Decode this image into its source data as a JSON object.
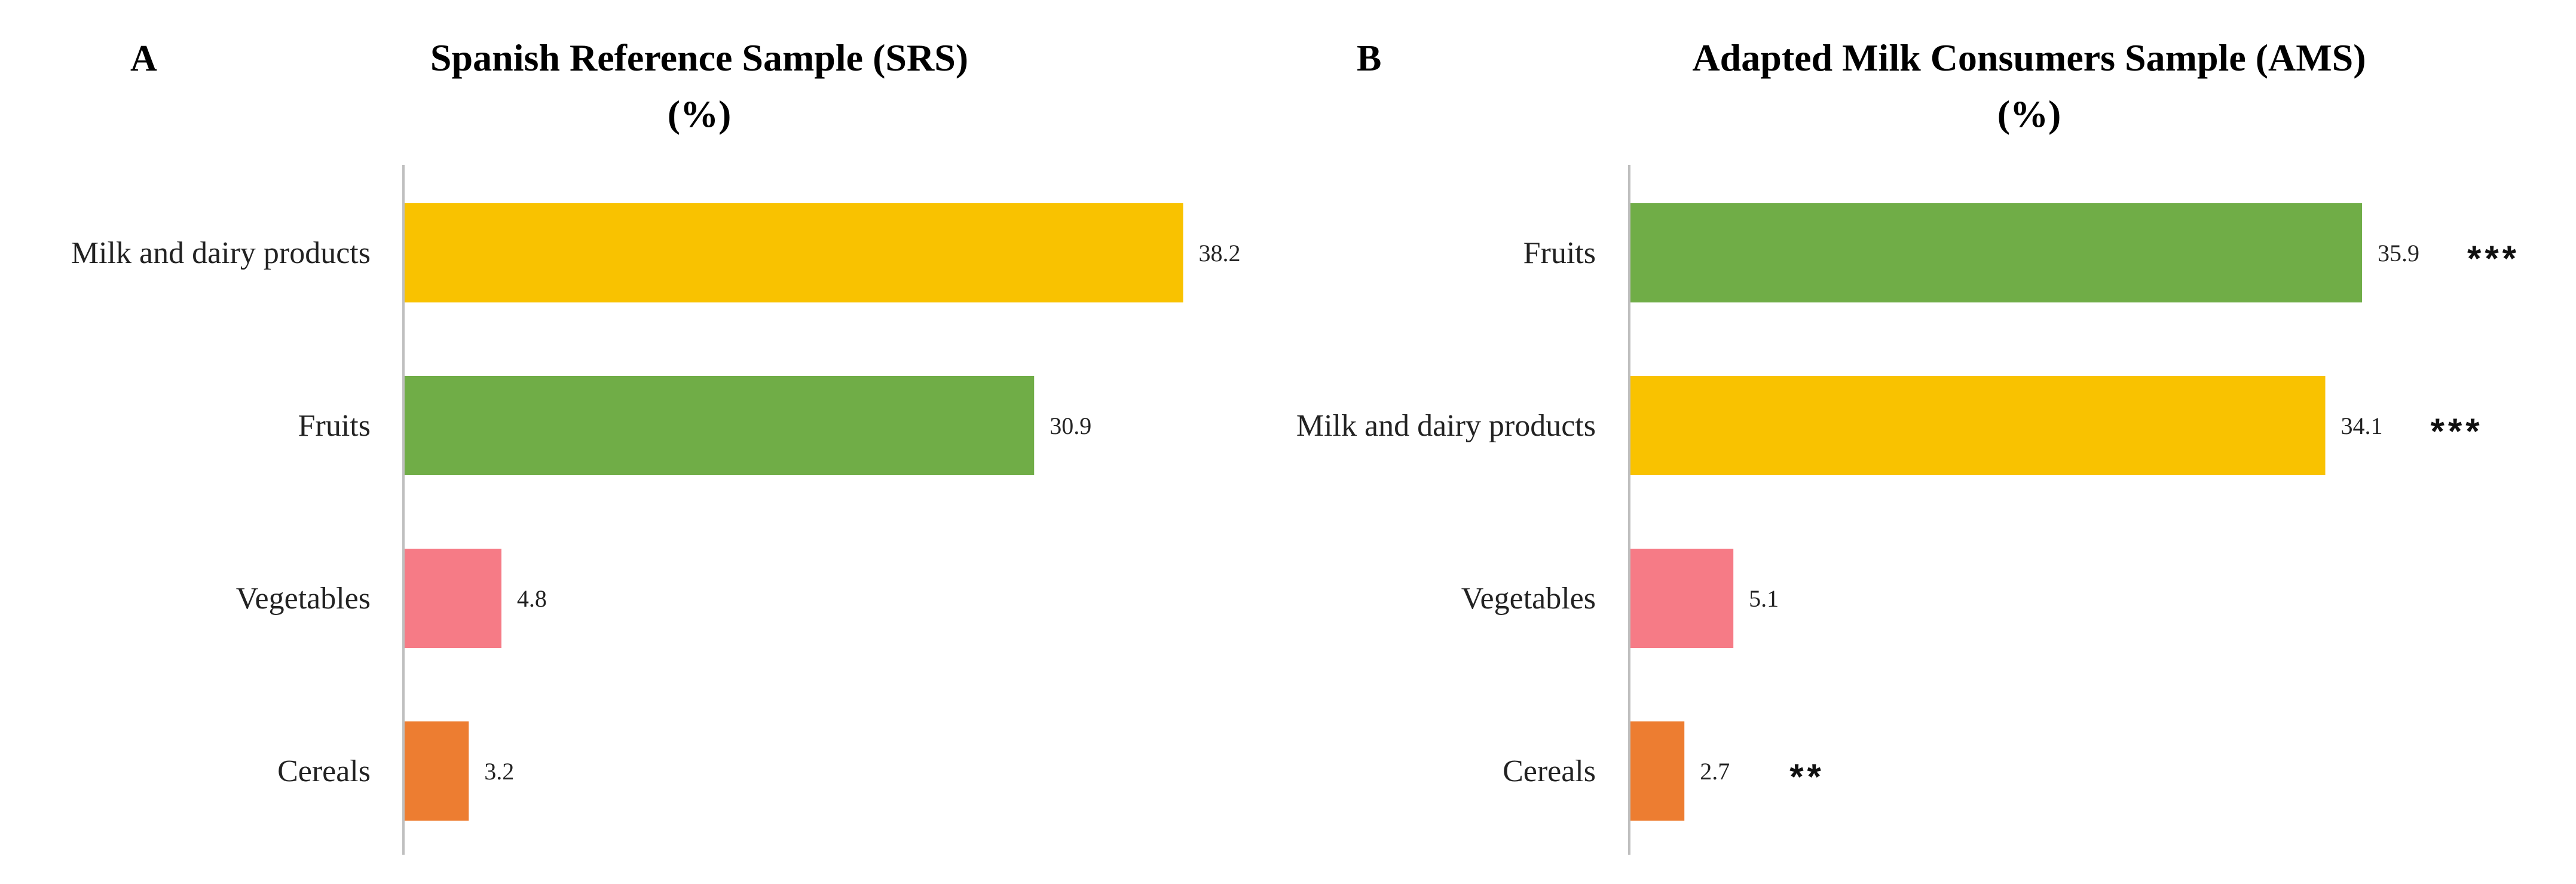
{
  "chart_data": [
    {
      "type": "bar",
      "orientation": "horizontal",
      "panel": "A",
      "title_line1": "Spanish Reference Sample (SRS)",
      "title_line2": "(%)",
      "xlabel": "",
      "ylabel": "",
      "xlim": [
        0,
        50
      ],
      "grid": false,
      "categories": [
        "Milk and dairy products",
        "Fruits",
        "Vegetables",
        "Cereals"
      ],
      "values": [
        38.2,
        30.9,
        4.8,
        3.2
      ],
      "value_labels": [
        "38.2",
        "30.9",
        "4.8",
        "3.2"
      ],
      "significance": [
        "",
        "",
        "",
        ""
      ],
      "colors": [
        "#F9C200",
        "#70AD47",
        "#F67B86",
        "#ED7D31"
      ]
    },
    {
      "type": "bar",
      "orientation": "horizontal",
      "panel": "B",
      "title_line1": "Adapted Milk Consumers Sample (AMS)",
      "title_line2": "(%)",
      "xlabel": "",
      "ylabel": "",
      "xlim": [
        0,
        50
      ],
      "grid": false,
      "categories": [
        "Fruits",
        "Milk and dairy products",
        "Vegetables",
        "Cereals"
      ],
      "values": [
        35.9,
        34.1,
        5.1,
        2.7
      ],
      "value_labels": [
        "35.9",
        "34.1",
        "5.1",
        "2.7"
      ],
      "significance": [
        "***",
        "***",
        "",
        "**"
      ],
      "colors": [
        "#70AD47",
        "#F9C200",
        "#F67B86",
        "#ED7D31"
      ]
    }
  ]
}
